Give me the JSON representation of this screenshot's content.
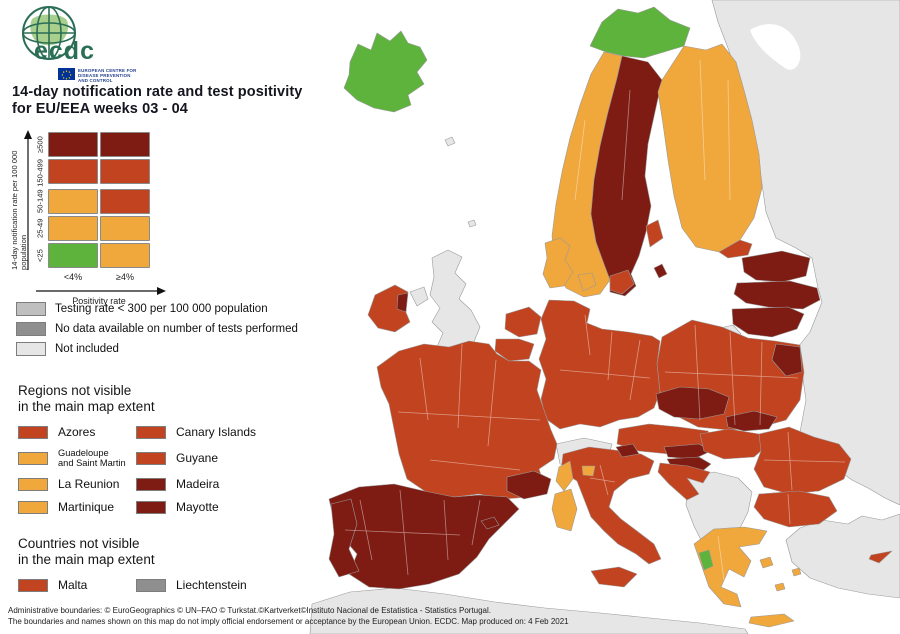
{
  "header": {
    "brand": "ecdc",
    "org_line1": "EUROPEAN CENTRE FOR",
    "org_line2": "DISEASE PREVENTION",
    "org_line3": "AND CONTROL",
    "title_line1": "14-day notification rate and test positivity",
    "title_line2": "for EU/EEA weeks 03 - 04"
  },
  "colors": {
    "dark": "#7e1b12",
    "brick": "#c2431f",
    "orange": "#f0a73c",
    "green": "#5eb33c",
    "grey_testing": "#bfbfbf",
    "grey_nodata": "#8f8f8f",
    "grey_not_included": "#e6e6e6",
    "sea": "#ffffff",
    "logo_green": "#2a6e55",
    "eu_blue": "#003399"
  },
  "matrix_legend": {
    "y_axis_label": "14-day notification rate per 100 000 population",
    "x_axis_label": "Positivity rate",
    "col_labels": [
      "<4%",
      "≥4%"
    ],
    "rows": [
      {
        "label": "≥500",
        "cells": [
          "dark",
          "dark"
        ]
      },
      {
        "label": "150-499",
        "cells": [
          "brick",
          "brick"
        ]
      },
      {
        "label": "50-149",
        "cells": [
          "orange",
          "brick"
        ]
      },
      {
        "label": "25-49",
        "cells": [
          "orange",
          "orange"
        ]
      },
      {
        "label": "<25",
        "cells": [
          "green",
          "orange"
        ]
      }
    ]
  },
  "status_legend": [
    {
      "label": "Testing rate < 300 per 100 000 population",
      "color": "grey_testing"
    },
    {
      "label": "No data available on number of tests performed",
      "color": "grey_nodata"
    },
    {
      "label": "Not included",
      "color": "grey_not_included"
    }
  ],
  "regions_panel": {
    "title_line1": "Regions not visible",
    "title_line2": "in the main map extent",
    "items": [
      {
        "label": "Azores",
        "color": "brick"
      },
      {
        "label": "Canary Islands",
        "color": "brick"
      },
      {
        "label": "Guadeloupe\nand Saint Martin",
        "color": "orange"
      },
      {
        "label": "Guyane",
        "color": "brick"
      },
      {
        "label": "La Reunion",
        "color": "orange"
      },
      {
        "label": "Madeira",
        "color": "dark"
      },
      {
        "label": "Martinique",
        "color": "orange"
      },
      {
        "label": "Mayotte",
        "color": "dark"
      }
    ]
  },
  "countries_panel": {
    "title_line1": "Countries not visible",
    "title_line2": "in the main map extent",
    "items": [
      {
        "label": "Malta",
        "color": "brick"
      },
      {
        "label": "Liechtenstein",
        "color": "grey_nodata"
      }
    ]
  },
  "footer": {
    "line1": "Administrative boundaries: © EuroGeographics © UN–FAO © Turkstat.©Kartverket©Instituto Nacional de Estatistica - Statistics Portugal.",
    "line2": "The boundaries and names shown on this map do not imply official endorsement or acceptance by the European Union. ECDC. Map produced on: 4 Feb 2021"
  },
  "map_regions": {
    "eastern-neighbours": "grey_not_included",
    "white-sea": "sea",
    "north-africa": "grey_not_included",
    "turkey": "grey_not_included",
    "western-balkans": "grey_not_included",
    "uk": "grey_not_included",
    "northern-ireland": "grey_not_included",
    "switzerland": "grey_not_included",
    "kaliningrad": "grey_not_included",
    "faroe-islands": "grey_not_included",
    "shetland-islands": "grey_not_included",
    "iceland": "green",
    "norway-north": "green",
    "norway": "orange",
    "sweden": "dark",
    "sweden-stockholm": "brick",
    "sweden-south": "brick",
    "gotland": "dark",
    "finland": "orange",
    "finland-south": "brick",
    "denmark": "orange",
    "denmark-zealand": "orange",
    "estonia": "dark",
    "latvia": "dark",
    "lithuania": "dark",
    "poland": "brick",
    "poland-east": "dark",
    "germany": "brick",
    "netherlands": "brick",
    "belgium": "brick",
    "czechia": "dark",
    "slovakia": "dark",
    "austria": "brick",
    "austria-south": "dark",
    "slovenia": "dark",
    "croatia": "brick",
    "hungary": "brick",
    "romania": "brick",
    "bulgaria": "brick",
    "greece": "orange",
    "ionian-islands": "green",
    "crete": "orange",
    "aegean-island-1": "orange",
    "aegean-island-2": "orange",
    "aegean-island-3": "orange",
    "italy": "brick",
    "italy-northeast": "dark",
    "sicily": "brick",
    "sardinia": "orange",
    "corsica": "orange",
    "france": "brick",
    "provence": "dark",
    "spain": "dark",
    "portugal": "dark",
    "balearic-islands": "dark",
    "ireland": "brick",
    "ireland-east": "dark",
    "ticino": "orange",
    "cyprus": "brick"
  }
}
